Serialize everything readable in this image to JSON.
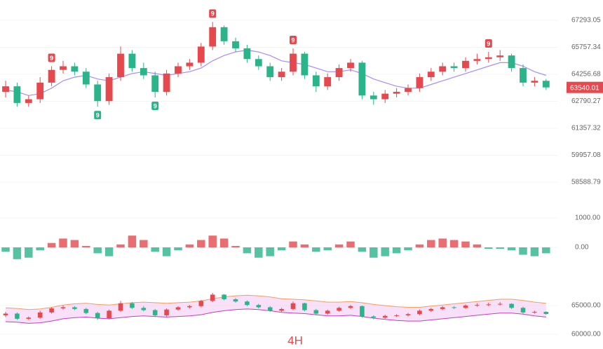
{
  "chart_data": {
    "type": "candlestick",
    "timeframe": "4H",
    "log_scale": true,
    "ylim": [
      57269,
      68474
    ],
    "yticks": [
      67293.05,
      65757.34,
      64256.68,
      62790.27,
      61357.32,
      59957.08,
      58588.79
    ],
    "up_color": "#e5484d",
    "down_color": "#2bb38a",
    "open": [
      63300,
      63600,
      62700,
      62900,
      63800,
      64500,
      64700,
      64400,
      63700,
      62800,
      64100,
      65400,
      64600,
      64200,
      63300,
      64300,
      64700,
      64900,
      65800,
      66900,
      66100,
      65700,
      65100,
      64700,
      64100,
      64400,
      65400,
      64200,
      63600,
      64100,
      64600,
      64900,
      63100,
      62900,
      63200,
      63300,
      63500,
      64100,
      64400,
      64700,
      64600,
      65000,
      65100,
      65200,
      65300,
      64600,
      63800,
      63900
    ],
    "high": [
      63900,
      63800,
      63100,
      64100,
      64700,
      65000,
      64900,
      64600,
      63900,
      64300,
      65800,
      65600,
      64900,
      64400,
      64500,
      64900,
      65100,
      66000,
      67200,
      67000,
      66300,
      65900,
      65300,
      64900,
      64600,
      65700,
      65500,
      64400,
      64300,
      64800,
      65100,
      65000,
      63300,
      63400,
      63500,
      63700,
      64300,
      64600,
      64900,
      64900,
      65200,
      65400,
      65500,
      65600,
      65400,
      64800,
      64100,
      64000
    ],
    "low": [
      63000,
      62500,
      62500,
      62700,
      63600,
      64300,
      64200,
      63500,
      62500,
      62600,
      63900,
      64400,
      64000,
      63000,
      63100,
      64100,
      64500,
      64700,
      65600,
      65900,
      65500,
      64900,
      64500,
      63900,
      63900,
      64200,
      64000,
      63300,
      63400,
      63900,
      64400,
      62900,
      62600,
      62700,
      63000,
      63100,
      63300,
      63900,
      64200,
      64400,
      64400,
      64800,
      64900,
      65000,
      64400,
      63600,
      63600,
      63400
    ],
    "close": [
      63600,
      62700,
      62900,
      63800,
      64500,
      64700,
      64400,
      63700,
      62800,
      64100,
      65400,
      64600,
      64200,
      63300,
      64300,
      64700,
      64900,
      65800,
      66900,
      66100,
      65700,
      65100,
      64700,
      64100,
      64400,
      65400,
      64200,
      63600,
      64100,
      64600,
      64900,
      63100,
      62900,
      63200,
      63300,
      63500,
      64100,
      64400,
      64700,
      64600,
      65000,
      65100,
      65200,
      65300,
      64600,
      63800,
      63900,
      63540.01
    ],
    "ma": {
      "color": "#a78bfa",
      "values": [
        63400,
        63300,
        63100,
        63200,
        63500,
        63900,
        64100,
        64200,
        64000,
        63900,
        64100,
        64300,
        64400,
        64300,
        64200,
        64300,
        64400,
        64600,
        65000,
        65300,
        65500,
        65600,
        65500,
        65300,
        65000,
        64900,
        64800,
        64600,
        64400,
        64400,
        64500,
        64300,
        64000,
        63800,
        63600,
        63500,
        63500,
        63700,
        63900,
        64100,
        64300,
        64500,
        64700,
        64900,
        64900,
        64700,
        64400,
        64200
      ]
    },
    "signals": [
      {
        "index": 4,
        "label": "9",
        "side": "up"
      },
      {
        "index": 18,
        "label": "9",
        "side": "up"
      },
      {
        "index": 25,
        "label": "9",
        "side": "up"
      },
      {
        "index": 42,
        "label": "9",
        "side": "up"
      },
      {
        "index": 8,
        "label": "9",
        "side": "down"
      },
      {
        "index": 13,
        "label": "9",
        "side": "down"
      }
    ],
    "macd": {
      "ylim": [
        -1000,
        1262
      ],
      "yticks": [
        {
          "value": 1000,
          "label": "1000.00"
        },
        {
          "value": 0,
          "label": "0.00"
        }
      ],
      "values": [
        -150,
        -400,
        -350,
        -100,
        150,
        300,
        250,
        50,
        -200,
        -300,
        100,
        400,
        250,
        -150,
        -300,
        -100,
        100,
        250,
        400,
        300,
        50,
        -200,
        -350,
        -300,
        -100,
        200,
        100,
        -150,
        -100,
        100,
        200,
        -150,
        -350,
        -300,
        -200,
        -100,
        100,
        250,
        300,
        250,
        200,
        100,
        -50,
        -50,
        -100,
        -250,
        -300,
        -200
      ]
    },
    "bands": {
      "ylim": [
        58415,
        69390
      ],
      "yticks": [
        {
          "value": 65000,
          "label": "65000.00"
        },
        {
          "value": 60000,
          "label": "60000.00"
        }
      ],
      "fill": "#f3d3f5",
      "upper": [
        64600,
        64500,
        64300,
        64400,
        64700,
        65100,
        65300,
        65400,
        65200,
        65100,
        65300,
        65500,
        65600,
        65500,
        65400,
        65500,
        65600,
        65800,
        66200,
        66500,
        66700,
        66800,
        66700,
        66500,
        66200,
        66100,
        66000,
        65800,
        65600,
        65600,
        65700,
        65500,
        65200,
        65000,
        64800,
        64700,
        64700,
        64900,
        65100,
        65300,
        65500,
        65700,
        65900,
        66100,
        66100,
        65900,
        65600,
        65400
      ],
      "lower": [
        62200,
        62100,
        61900,
        62000,
        62300,
        62700,
        62900,
        63000,
        62800,
        62700,
        62900,
        63100,
        63200,
        63100,
        63000,
        63100,
        63200,
        63400,
        63800,
        64100,
        64300,
        64400,
        64300,
        64100,
        63800,
        63700,
        63600,
        63400,
        63200,
        63200,
        63300,
        63100,
        62800,
        62600,
        62400,
        62300,
        62300,
        62500,
        62700,
        62900,
        63100,
        63300,
        63500,
        63700,
        63700,
        63500,
        63200,
        63000
      ]
    }
  }
}
